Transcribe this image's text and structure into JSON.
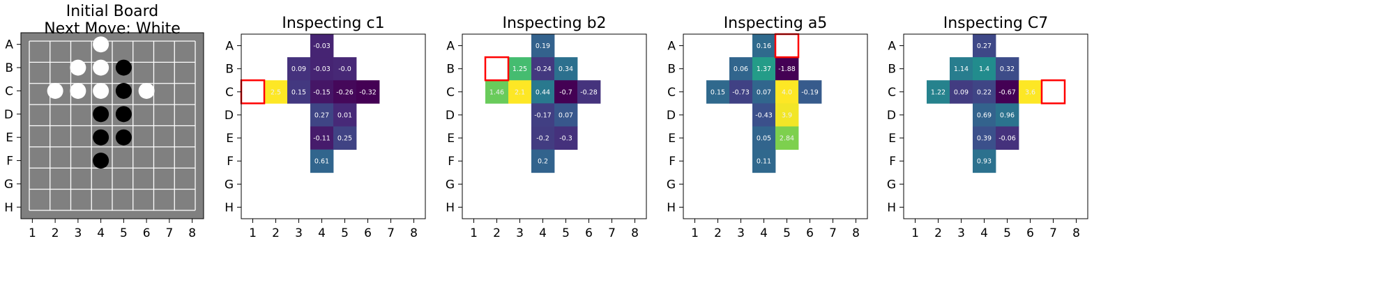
{
  "chart_data": [
    {
      "type": "board",
      "title_lines": [
        "Initial Board",
        "Next Move: White"
      ],
      "row_labels": [
        "A",
        "B",
        "C",
        "D",
        "E",
        "F",
        "G",
        "H"
      ],
      "col_labels": [
        "1",
        "2",
        "3",
        "4",
        "5",
        "6",
        "7",
        "8"
      ],
      "colors": {
        "background": "#808080",
        "grid": "#ffffff",
        "white_piece": "#ffffff",
        "black_piece": "#000000"
      },
      "pieces": [
        {
          "row": 0,
          "col": 3,
          "color": "white"
        },
        {
          "row": 1,
          "col": 2,
          "color": "white"
        },
        {
          "row": 1,
          "col": 3,
          "color": "white"
        },
        {
          "row": 1,
          "col": 4,
          "color": "black"
        },
        {
          "row": 2,
          "col": 1,
          "color": "white"
        },
        {
          "row": 2,
          "col": 2,
          "color": "white"
        },
        {
          "row": 2,
          "col": 3,
          "color": "white"
        },
        {
          "row": 2,
          "col": 4,
          "color": "black"
        },
        {
          "row": 2,
          "col": 5,
          "color": "white"
        },
        {
          "row": 3,
          "col": 3,
          "color": "black"
        },
        {
          "row": 3,
          "col": 4,
          "color": "black"
        },
        {
          "row": 4,
          "col": 3,
          "color": "black"
        },
        {
          "row": 4,
          "col": 4,
          "color": "black"
        },
        {
          "row": 5,
          "col": 3,
          "color": "black"
        }
      ]
    },
    {
      "type": "heatmap",
      "title": "Inspecting c1",
      "row_labels": [
        "A",
        "B",
        "C",
        "D",
        "E",
        "F",
        "G",
        "H"
      ],
      "col_labels": [
        "1",
        "2",
        "3",
        "4",
        "5",
        "6",
        "7",
        "8"
      ],
      "highlight": {
        "row": 2,
        "col": 0
      },
      "cells": [
        {
          "row": 0,
          "col": 3,
          "value": -0.03,
          "label": "-0.03"
        },
        {
          "row": 1,
          "col": 2,
          "value": 0.09,
          "label": "0.09"
        },
        {
          "row": 1,
          "col": 3,
          "value": -0.03,
          "label": "-0.03"
        },
        {
          "row": 1,
          "col": 4,
          "value": 0.0,
          "label": "-0.0"
        },
        {
          "row": 2,
          "col": 1,
          "value": 2.5,
          "label": "2.5"
        },
        {
          "row": 2,
          "col": 2,
          "value": 0.15,
          "label": "0.15"
        },
        {
          "row": 2,
          "col": 3,
          "value": -0.15,
          "label": "-0.15"
        },
        {
          "row": 2,
          "col": 4,
          "value": -0.26,
          "label": "-0.26"
        },
        {
          "row": 2,
          "col": 5,
          "value": -0.32,
          "label": "-0.32"
        },
        {
          "row": 3,
          "col": 3,
          "value": 0.27,
          "label": "0.27"
        },
        {
          "row": 3,
          "col": 4,
          "value": 0.01,
          "label": "0.01"
        },
        {
          "row": 4,
          "col": 3,
          "value": -0.11,
          "label": "-0.11"
        },
        {
          "row": 4,
          "col": 4,
          "value": 0.25,
          "label": "0.25"
        },
        {
          "row": 5,
          "col": 3,
          "value": 0.61,
          "label": "0.61"
        }
      ]
    },
    {
      "type": "heatmap",
      "title": "Inspecting b2",
      "row_labels": [
        "A",
        "B",
        "C",
        "D",
        "E",
        "F",
        "G",
        "H"
      ],
      "col_labels": [
        "1",
        "2",
        "3",
        "4",
        "5",
        "6",
        "7",
        "8"
      ],
      "highlight": {
        "row": 1,
        "col": 1
      },
      "cells": [
        {
          "row": 0,
          "col": 3,
          "value": 0.19,
          "label": "0.19"
        },
        {
          "row": 1,
          "col": 2,
          "value": 1.25,
          "label": "1.25"
        },
        {
          "row": 1,
          "col": 3,
          "value": -0.24,
          "label": "-0.24"
        },
        {
          "row": 1,
          "col": 4,
          "value": 0.34,
          "label": "0.34"
        },
        {
          "row": 2,
          "col": 1,
          "value": 1.46,
          "label": "1.46"
        },
        {
          "row": 2,
          "col": 2,
          "value": 2.1,
          "label": "2.1"
        },
        {
          "row": 2,
          "col": 3,
          "value": 0.44,
          "label": "0.44"
        },
        {
          "row": 2,
          "col": 4,
          "value": -0.7,
          "label": "-0.7"
        },
        {
          "row": 2,
          "col": 5,
          "value": -0.28,
          "label": "-0.28"
        },
        {
          "row": 3,
          "col": 3,
          "value": -0.17,
          "label": "-0.17"
        },
        {
          "row": 3,
          "col": 4,
          "value": 0.07,
          "label": "0.07"
        },
        {
          "row": 4,
          "col": 3,
          "value": -0.2,
          "label": "-0.2"
        },
        {
          "row": 4,
          "col": 4,
          "value": -0.3,
          "label": "-0.3"
        },
        {
          "row": 5,
          "col": 3,
          "value": 0.2,
          "label": "0.2"
        }
      ]
    },
    {
      "type": "heatmap",
      "title": "Inspecting a5",
      "row_labels": [
        "A",
        "B",
        "C",
        "D",
        "E",
        "F",
        "G",
        "H"
      ],
      "col_labels": [
        "1",
        "2",
        "3",
        "4",
        "5",
        "6",
        "7",
        "8"
      ],
      "highlight": {
        "row": 0,
        "col": 4
      },
      "cells": [
        {
          "row": 0,
          "col": 3,
          "value": 0.16,
          "label": "0.16"
        },
        {
          "row": 1,
          "col": 2,
          "value": 0.06,
          "label": "0.06"
        },
        {
          "row": 1,
          "col": 3,
          "value": 1.37,
          "label": "1.37"
        },
        {
          "row": 1,
          "col": 4,
          "value": -1.88,
          "label": "-1.88"
        },
        {
          "row": 2,
          "col": 1,
          "value": 0.15,
          "label": "0.15"
        },
        {
          "row": 2,
          "col": 2,
          "value": -0.73,
          "label": "-0.73"
        },
        {
          "row": 2,
          "col": 3,
          "value": 0.07,
          "label": "0.07"
        },
        {
          "row": 2,
          "col": 4,
          "value": 4.0,
          "label": "4.0"
        },
        {
          "row": 2,
          "col": 5,
          "value": -0.19,
          "label": "-0.19"
        },
        {
          "row": 3,
          "col": 3,
          "value": -0.43,
          "label": "-0.43"
        },
        {
          "row": 3,
          "col": 4,
          "value": 3.9,
          "label": "3.9"
        },
        {
          "row": 4,
          "col": 3,
          "value": 0.05,
          "label": "0.05"
        },
        {
          "row": 4,
          "col": 4,
          "value": 2.84,
          "label": "2.84"
        },
        {
          "row": 5,
          "col": 3,
          "value": 0.11,
          "label": "0.11"
        }
      ]
    },
    {
      "type": "heatmap",
      "title": "Inspecting C7",
      "row_labels": [
        "A",
        "B",
        "C",
        "D",
        "E",
        "F",
        "G",
        "H"
      ],
      "col_labels": [
        "1",
        "2",
        "3",
        "4",
        "5",
        "6",
        "7",
        "8"
      ],
      "highlight": {
        "row": 2,
        "col": 6
      },
      "cells": [
        {
          "row": 0,
          "col": 3,
          "value": 0.27,
          "label": "0.27"
        },
        {
          "row": 1,
          "col": 2,
          "value": 1.14,
          "label": "1.14"
        },
        {
          "row": 1,
          "col": 3,
          "value": 1.4,
          "label": "1.4"
        },
        {
          "row": 1,
          "col": 4,
          "value": 0.32,
          "label": "0.32"
        },
        {
          "row": 2,
          "col": 1,
          "value": 1.22,
          "label": "1.22"
        },
        {
          "row": 2,
          "col": 2,
          "value": 0.09,
          "label": "0.09"
        },
        {
          "row": 2,
          "col": 3,
          "value": 0.22,
          "label": "0.22"
        },
        {
          "row": 2,
          "col": 4,
          "value": -0.67,
          "label": "-0.67"
        },
        {
          "row": 2,
          "col": 5,
          "value": 3.6,
          "label": "3.6"
        },
        {
          "row": 3,
          "col": 3,
          "value": 0.69,
          "label": "0.69"
        },
        {
          "row": 3,
          "col": 4,
          "value": 0.96,
          "label": "0.96"
        },
        {
          "row": 4,
          "col": 3,
          "value": 0.39,
          "label": "0.39"
        },
        {
          "row": 4,
          "col": 4,
          "value": -0.06,
          "label": "-0.06"
        },
        {
          "row": 5,
          "col": 3,
          "value": 0.93,
          "label": "0.93"
        }
      ]
    }
  ],
  "colors": {
    "highlight": "#ff0000",
    "frame": "#000000"
  }
}
